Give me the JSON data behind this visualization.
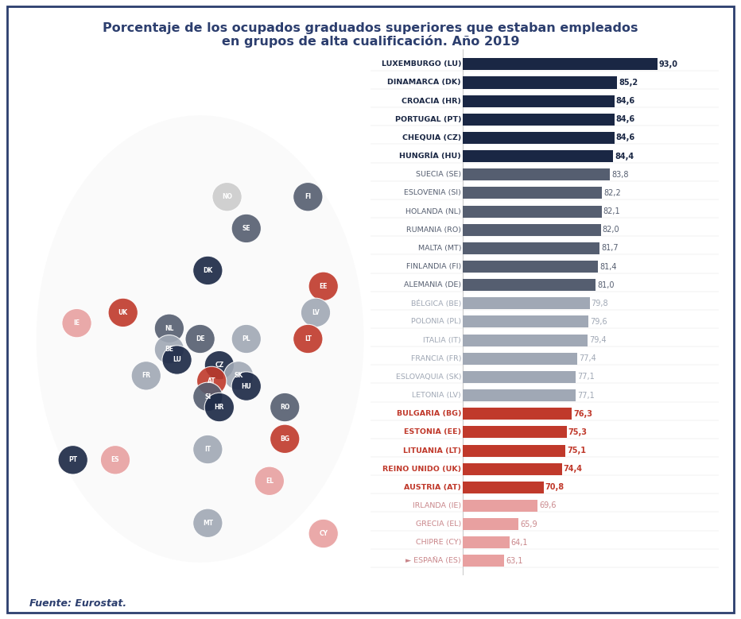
{
  "title_line1": "Porcentaje de los ocupados graduados superiores que estaban empleados",
  "title_line2": "en grupos de alta cualificación. Año 2019",
  "source": "Fuente: Eurostat.",
  "categories": [
    "LUXEMBURGO (LU)",
    "DINAMARCA (DK)",
    "CROACIA (HR)",
    "PORTUGAL (PT)",
    "CHEQUIA (CZ)",
    "HUNGRÍA (HU)",
    "SUECIA (SE)",
    "ESLOVENIA (SI)",
    "HOLANDA (NL)",
    "RUMANIA (RO)",
    "MALTA (MT)",
    "FINLANDIA (FI)",
    "ALEMANIA (DE)",
    "BÉLGICA (BE)",
    "POLONIA (PL)",
    "ITALIA (IT)",
    "FRANCIA (FR)",
    "ESLOVAQUIA (SK)",
    "LETONIA (LV)",
    "BULGARIA (BG)",
    "ESTONIA (EE)",
    "LITUANIA (LT)",
    "REINO UNIDO (UK)",
    "AUSTRIA (AT)",
    "IRLANDA (IE)",
    "GRECIA (EL)",
    "CHIPRE (CY)",
    "► ESPAÑA (ES)"
  ],
  "values": [
    93.0,
    85.2,
    84.6,
    84.6,
    84.6,
    84.4,
    83.8,
    82.2,
    82.1,
    82.0,
    81.7,
    81.4,
    81.0,
    79.8,
    79.6,
    79.4,
    77.4,
    77.1,
    77.1,
    76.3,
    75.3,
    75.1,
    74.4,
    70.8,
    69.6,
    65.9,
    64.1,
    63.1
  ],
  "bar_colors": [
    "#1a2744",
    "#1a2744",
    "#1a2744",
    "#1a2744",
    "#1a2744",
    "#1a2744",
    "#555e70",
    "#555e70",
    "#555e70",
    "#555e70",
    "#555e70",
    "#555e70",
    "#555e70",
    "#a0a8b5",
    "#a0a8b5",
    "#a0a8b5",
    "#a0a8b5",
    "#a0a8b5",
    "#a0a8b5",
    "#c0392b",
    "#c0392b",
    "#c0392b",
    "#c0392b",
    "#c0392b",
    "#e8a0a0",
    "#e8a0a0",
    "#e8a0a0",
    "#e8a0a0"
  ],
  "label_colors": [
    "#1a2744",
    "#1a2744",
    "#1a2744",
    "#1a2744",
    "#1a2744",
    "#1a2744",
    "#555e70",
    "#555e70",
    "#555e70",
    "#555e70",
    "#555e70",
    "#555e70",
    "#555e70",
    "#a0a8b5",
    "#a0a8b5",
    "#a0a8b5",
    "#a0a8b5",
    "#a0a8b5",
    "#a0a8b5",
    "#c0392b",
    "#c0392b",
    "#c0392b",
    "#c0392b",
    "#c0392b",
    "#c9868a",
    "#c9868a",
    "#c9868a",
    "#c9868a"
  ],
  "value_colors": [
    "#1a2744",
    "#1a2744",
    "#1a2744",
    "#1a2744",
    "#1a2744",
    "#1a2744",
    "#555e70",
    "#555e70",
    "#555e70",
    "#555e70",
    "#555e70",
    "#555e70",
    "#555e70",
    "#a0a8b5",
    "#a0a8b5",
    "#a0a8b5",
    "#a0a8b5",
    "#a0a8b5",
    "#a0a8b5",
    "#c0392b",
    "#c0392b",
    "#c0392b",
    "#c0392b",
    "#c0392b",
    "#c9868a",
    "#c9868a",
    "#c9868a",
    "#c9868a"
  ],
  "bold_indices": [
    0,
    1,
    2,
    3,
    4,
    5,
    19,
    20,
    21,
    22,
    23
  ],
  "xlim": [
    55,
    100
  ],
  "bar_height": 0.65,
  "background_color": "#ffffff",
  "border_color": "#2c3e6e"
}
